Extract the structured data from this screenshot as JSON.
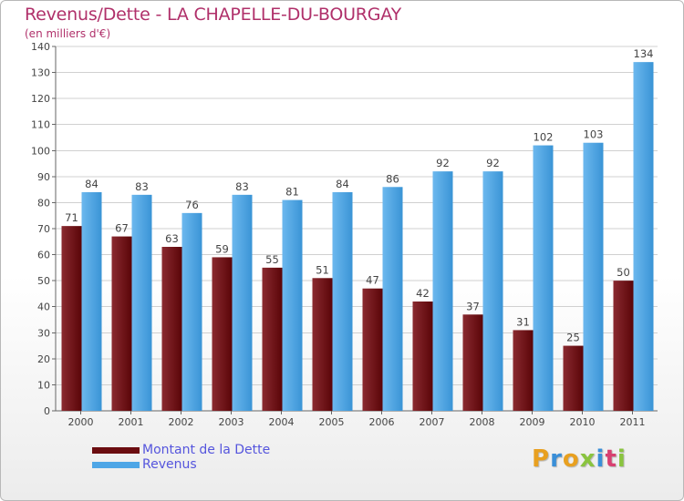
{
  "header": {
    "title": "Revenus/Dette - LA CHAPELLE-DU-BOURGAY",
    "subtitle": "(en milliers d'€)"
  },
  "legend": [
    {
      "label": "Montant de la Dette",
      "color": "#6b0d10"
    },
    {
      "label": "Revenus",
      "color": "#4ea6e6"
    }
  ],
  "logo": {
    "letters": [
      "P",
      "r",
      "o",
      "x",
      "i",
      "t",
      "i"
    ],
    "colors": [
      "#e8a020",
      "#3a8fd8",
      "#e8a020",
      "#8ac43f",
      "#3a8fd8",
      "#d84070",
      "#8ac43f"
    ]
  },
  "chart_data": {
    "type": "bar",
    "title": "Revenus/Dette - LA CHAPELLE-DU-BOURGAY",
    "ylabel": "(en milliers d'€)",
    "categories": [
      "2000",
      "2001",
      "2002",
      "2003",
      "2004",
      "2005",
      "2006",
      "2007",
      "2008",
      "2009",
      "2010",
      "2011"
    ],
    "series": [
      {
        "name": "Montant de la Dette",
        "values": [
          71,
          67,
          63,
          59,
          55,
          51,
          47,
          42,
          37,
          31,
          25,
          50
        ],
        "color": "#6b0d10"
      },
      {
        "name": "Revenus",
        "values": [
          84,
          83,
          76,
          83,
          81,
          84,
          86,
          92,
          92,
          102,
          103,
          134
        ],
        "color": "#4ea6e6"
      }
    ],
    "ylim": [
      0,
      140
    ],
    "yticks": [
      0,
      10,
      20,
      30,
      40,
      50,
      60,
      70,
      80,
      90,
      100,
      110,
      120,
      130,
      140
    ],
    "grid": true,
    "legend_position": "bottom-left",
    "data_labels": true
  }
}
